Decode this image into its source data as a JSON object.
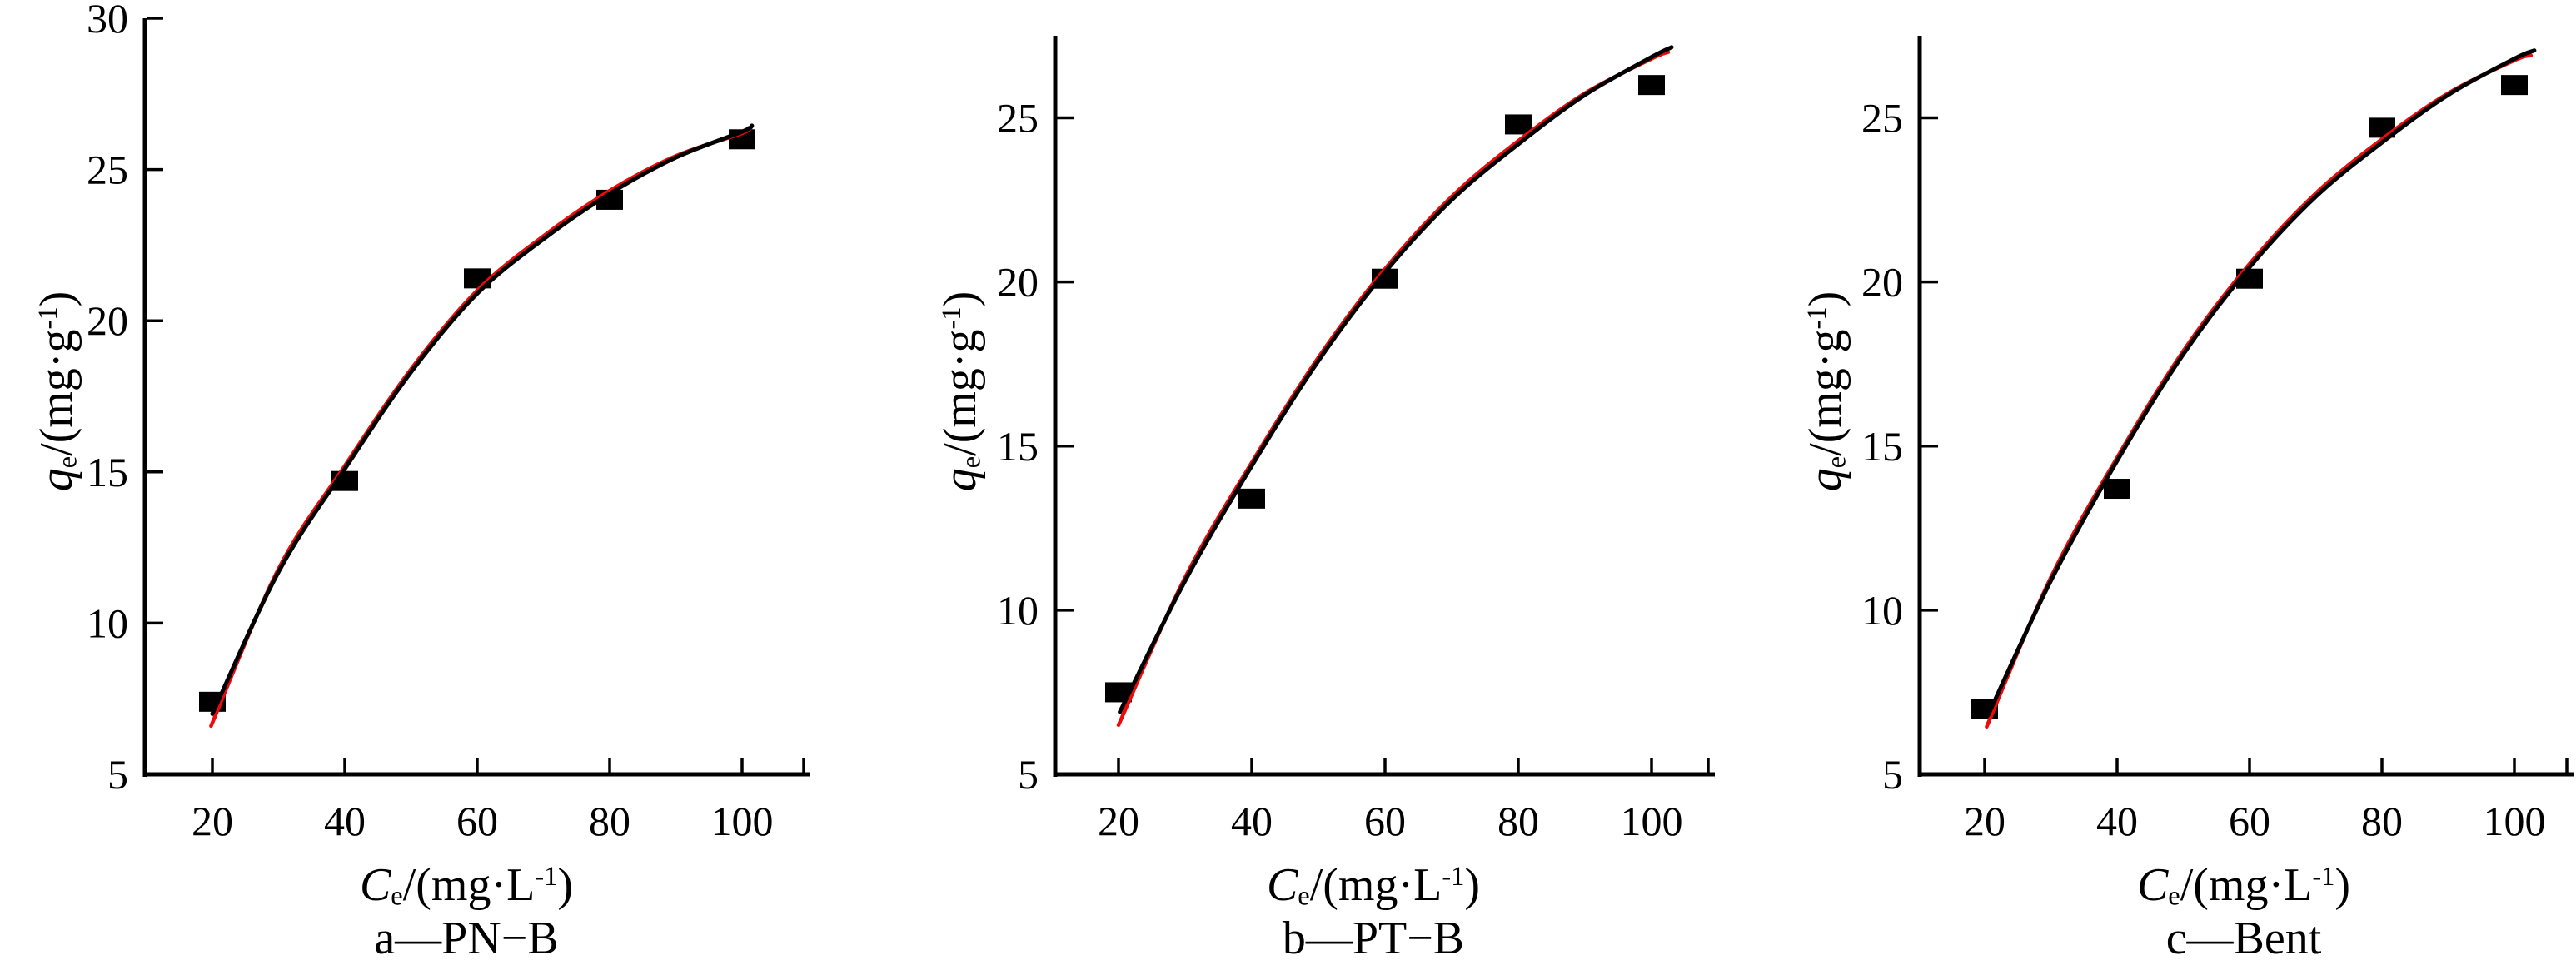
{
  "figure": {
    "background": "#ffffff",
    "colors": {
      "axis": "#000000",
      "data_points": "#000000",
      "fit_curve_black": "#000000",
      "fit_curve_red": "#ee0a0a"
    }
  },
  "chart_data": [
    {
      "id": "a",
      "type": "scatter",
      "subtitle": "a—PN−B",
      "x_label": {
        "var": "C",
        "sub": "e",
        "mid": "/(mg·L",
        "sup": "-1",
        "close": ")"
      },
      "y_label": {
        "var": "q",
        "sub": "e",
        "mid": "/(mg·g",
        "sup": "-1",
        "close": ")"
      },
      "x_ticks": [
        20,
        40,
        60,
        80,
        100
      ],
      "y_ticks": [
        5,
        10,
        15,
        20,
        25,
        30
      ],
      "x_axis_range": [
        10,
        110
      ],
      "y_axis_range": [
        5,
        30
      ],
      "grid": false,
      "legend": "none",
      "points": [
        [
          20,
          7.4
        ],
        [
          40,
          14.7
        ],
        [
          60,
          21.4
        ],
        [
          80,
          24.0
        ],
        [
          100,
          26.0
        ]
      ],
      "fit_curves": [
        {
          "name": "fit-red",
          "color": "#ee0a0a",
          "points": [
            [
              19.8,
              6.6
            ],
            [
              30,
              11.8
            ],
            [
              40,
              15.2
            ],
            [
              50,
              18.4
            ],
            [
              60,
              21.0
            ],
            [
              70,
              22.8
            ],
            [
              80,
              24.3
            ],
            [
              90,
              25.45
            ],
            [
              100,
              26.2
            ],
            [
              101,
              26.38
            ]
          ]
        },
        {
          "name": "fit-black",
          "color": "#000000",
          "points": [
            [
              20.0,
              7.0
            ],
            [
              30,
              11.7
            ],
            [
              40,
              15.1
            ],
            [
              50,
              18.3
            ],
            [
              60,
              20.9
            ],
            [
              70,
              22.7
            ],
            [
              80,
              24.2
            ],
            [
              90,
              25.4
            ],
            [
              100,
              26.25
            ],
            [
              101.5,
              26.45
            ]
          ]
        }
      ]
    },
    {
      "id": "b",
      "type": "scatter",
      "subtitle": "b—PT−B",
      "x_label": {
        "var": "C",
        "sub": "e",
        "mid": "/(mg·L",
        "sup": "-1",
        "close": ")"
      },
      "y_label": {
        "var": "q",
        "sub": "e",
        "mid": "/(mg·g",
        "sup": "-1",
        "close": ")"
      },
      "x_ticks": [
        20,
        40,
        60,
        80,
        100
      ],
      "y_ticks": [
        5,
        10,
        15,
        20,
        25
      ],
      "x_axis_range": [
        10,
        110
      ],
      "y_axis_range": [
        5,
        27.5
      ],
      "grid": false,
      "legend": "none",
      "points": [
        [
          20,
          7.5
        ],
        [
          40,
          13.4
        ],
        [
          60,
          20.1
        ],
        [
          80,
          24.8
        ],
        [
          100,
          26.0
        ]
      ],
      "fit_curves": [
        {
          "name": "fit-red",
          "color": "#ee0a0a",
          "points": [
            [
              20.0,
              6.5
            ],
            [
              30,
              11.0
            ],
            [
              40,
              14.5
            ],
            [
              50,
              17.7
            ],
            [
              60,
              20.4
            ],
            [
              70,
              22.6
            ],
            [
              80,
              24.3
            ],
            [
              90,
              25.75
            ],
            [
              100,
              26.8
            ],
            [
              102.5,
              27.0
            ]
          ]
        },
        {
          "name": "fit-black",
          "color": "#000000",
          "points": [
            [
              20.2,
              6.9
            ],
            [
              30,
              10.9
            ],
            [
              40,
              14.4
            ],
            [
              50,
              17.6
            ],
            [
              60,
              20.3
            ],
            [
              70,
              22.5
            ],
            [
              80,
              24.2
            ],
            [
              90,
              25.7
            ],
            [
              100,
              26.85
            ],
            [
              103,
              27.15
            ]
          ]
        }
      ]
    },
    {
      "id": "c",
      "type": "scatter",
      "subtitle": "c—Bent",
      "x_label": {
        "var": "C",
        "sub": "e",
        "mid": "/(mg·L",
        "sup": "-1",
        "close": ")"
      },
      "y_label": {
        "var": "q",
        "sub": "e",
        "mid": "/(mg·g",
        "sup": "-1",
        "close": ")"
      },
      "x_ticks": [
        20,
        40,
        60,
        80,
        100
      ],
      "y_ticks": [
        5,
        10,
        15,
        20,
        25
      ],
      "x_axis_range": [
        10,
        110
      ],
      "y_axis_range": [
        5,
        27.5
      ],
      "grid": false,
      "legend": "none",
      "points": [
        [
          20,
          7.0
        ],
        [
          40,
          13.7
        ],
        [
          60,
          20.1
        ],
        [
          80,
          24.7
        ],
        [
          100,
          26.0
        ]
      ],
      "fit_curves": [
        {
          "name": "fit-red",
          "color": "#ee0a0a",
          "points": [
            [
              20.3,
              6.45
            ],
            [
              30,
              11.0
            ],
            [
              40,
              14.65
            ],
            [
              50,
              17.9
            ],
            [
              60,
              20.55
            ],
            [
              70,
              22.7
            ],
            [
              80,
              24.35
            ],
            [
              90,
              25.75
            ],
            [
              100,
              26.75
            ],
            [
              102.5,
              26.9
            ]
          ]
        },
        {
          "name": "fit-black",
          "color": "#000000",
          "points": [
            [
              20.5,
              6.8
            ],
            [
              30,
              10.9
            ],
            [
              40,
              14.55
            ],
            [
              50,
              17.8
            ],
            [
              60,
              20.45
            ],
            [
              70,
              22.6
            ],
            [
              80,
              24.25
            ],
            [
              90,
              25.7
            ],
            [
              100,
              26.8
            ],
            [
              103,
              27.05
            ]
          ]
        }
      ]
    }
  ]
}
